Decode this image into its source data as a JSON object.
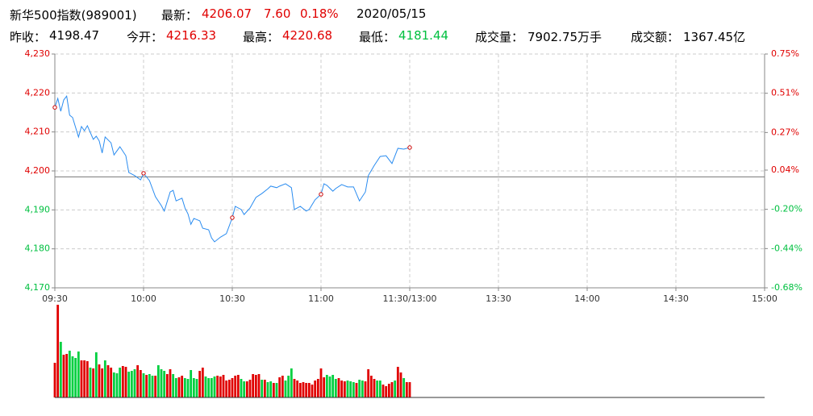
{
  "header": {
    "row1": [
      {
        "text": "新华500指数(989001)",
        "color": "#000000"
      },
      {
        "text": "最新：",
        "color": "#000000"
      },
      {
        "text": "4206.07",
        "color": "#e00000"
      },
      {
        "text": "7.60",
        "color": "#e00000"
      },
      {
        "text": "0.18%",
        "color": "#e00000"
      },
      {
        "text": "2020/05/15",
        "color": "#000000"
      }
    ],
    "row2": [
      {
        "text": "昨收：",
        "color": "#000000"
      },
      {
        "text": "4198.47",
        "color": "#000000"
      },
      {
        "text": "今开：",
        "color": "#000000"
      },
      {
        "text": "4216.33",
        "color": "#e00000"
      },
      {
        "text": "最高：",
        "color": "#000000"
      },
      {
        "text": "4220.68",
        "color": "#e00000"
      },
      {
        "text": "最低：",
        "color": "#000000"
      },
      {
        "text": "4181.44",
        "color": "#00c040"
      },
      {
        "text": "成交量：",
        "color": "#000000"
      },
      {
        "text": "7902.75万手",
        "color": "#000000"
      },
      {
        "text": "成交额：",
        "color": "#000000"
      },
      {
        "text": "1367.45亿",
        "color": "#000000"
      }
    ]
  },
  "chart_data": [
    {
      "type": "line",
      "color": "#2a8cf0",
      "marker_color": "#cc0000",
      "up_color": "#e00000",
      "down_color": "#00c040",
      "grid": true,
      "baseline": 4198.47,
      "x": [
        0,
        1,
        2,
        3,
        4,
        5,
        6,
        8,
        9,
        10,
        11,
        13,
        14,
        15,
        16,
        17,
        19,
        20,
        22,
        24,
        25,
        27,
        29,
        30,
        32,
        34,
        36,
        37,
        39,
        40,
        41,
        43,
        44,
        45,
        46,
        47,
        49,
        50,
        52,
        53,
        54,
        56,
        58,
        60,
        61,
        63,
        64,
        66,
        68,
        70,
        72,
        73,
        75,
        76,
        78,
        80,
        81,
        83,
        85,
        86,
        88,
        90,
        91,
        92,
        94,
        95,
        97,
        99,
        101,
        103,
        105,
        106,
        108,
        110,
        112,
        114,
        116,
        118,
        120
      ],
      "values": [
        4216.3,
        4218.6,
        4215.3,
        4218.2,
        4219.2,
        4214.3,
        4213.7,
        4208.7,
        4211.4,
        4210.3,
        4211.6,
        4208.1,
        4208.9,
        4207.7,
        4204.6,
        4208.7,
        4207.2,
        4204.1,
        4206.2,
        4203.9,
        4199.6,
        4198.8,
        4197.7,
        4199.4,
        4197.5,
        4193.4,
        4191.1,
        4189.7,
        4194.6,
        4195.0,
        4192.3,
        4193.0,
        4190.5,
        4189.0,
        4186.3,
        4187.8,
        4187.2,
        4185.3,
        4184.9,
        4182.8,
        4181.8,
        4183.0,
        4183.9,
        4188.0,
        4190.9,
        4190.1,
        4188.8,
        4190.5,
        4193.2,
        4194.2,
        4195.4,
        4196.1,
        4195.7,
        4196.1,
        4196.7,
        4195.7,
        4190.1,
        4190.9,
        4189.7,
        4190.1,
        4192.6,
        4194.0,
        4196.7,
        4196.3,
        4194.8,
        4195.5,
        4196.5,
        4195.9,
        4195.9,
        4192.3,
        4194.6,
        4198.8,
        4201.4,
        4203.7,
        4203.9,
        4201.9,
        4205.8,
        4205.6,
        4206.0
      ],
      "xlim": [
        0,
        240
      ],
      "xticks": [
        {
          "value": 0,
          "label": "09:30"
        },
        {
          "value": 30,
          "label": "10:00"
        },
        {
          "value": 60,
          "label": "10:30"
        },
        {
          "value": 90,
          "label": "11:00"
        },
        {
          "value": 120,
          "label": "11:30/13:00"
        },
        {
          "value": 150,
          "label": "13:30"
        },
        {
          "value": 180,
          "label": "14:00"
        },
        {
          "value": 210,
          "label": "14:30"
        },
        {
          "value": 240,
          "label": "15:00"
        }
      ],
      "ylim": [
        4170,
        4230
      ],
      "yticks": [
        {
          "value": 4170,
          "label": "4,170"
        },
        {
          "value": 4180,
          "label": "4,180"
        },
        {
          "value": 4190,
          "label": "4,190"
        },
        {
          "value": 4200,
          "label": "4,200"
        },
        {
          "value": 4210,
          "label": "4,210"
        },
        {
          "value": 4220,
          "label": "4,220"
        },
        {
          "value": 4230,
          "label": "4,230"
        }
      ],
      "y2lim": [
        -0.68,
        0.75
      ],
      "y2ticks": [
        {
          "value": -0.68,
          "label": "-0.68%"
        },
        {
          "value": -0.44,
          "label": "-0.44%"
        },
        {
          "value": -0.2,
          "label": "-0.20%"
        },
        {
          "value": 0.04,
          "label": "0.04%"
        },
        {
          "value": 0.27,
          "label": "0.27%"
        },
        {
          "value": 0.51,
          "label": "0.51%"
        },
        {
          "value": 0.75,
          "label": "0.75%"
        }
      ]
    },
    {
      "type": "bar",
      "xlim": [
        0,
        240
      ],
      "ylim": [
        0,
        115
      ],
      "values": [
        43,
        115,
        69,
        53,
        54,
        58,
        51,
        49,
        57,
        46,
        46,
        45,
        37,
        36,
        56,
        41,
        36,
        46,
        40,
        37,
        31,
        30,
        37,
        39,
        38,
        32,
        33,
        35,
        40,
        34,
        30,
        28,
        29,
        27,
        27,
        40,
        35,
        33,
        29,
        35,
        29,
        24,
        25,
        27,
        24,
        23,
        34,
        24,
        23,
        33,
        37,
        26,
        24,
        24,
        26,
        27,
        26,
        28,
        21,
        22,
        24,
        27,
        28,
        23,
        20,
        20,
        22,
        29,
        28,
        29,
        22,
        22,
        19,
        20,
        18,
        18,
        25,
        27,
        21,
        27,
        36,
        23,
        21,
        18,
        19,
        18,
        18,
        16,
        21,
        23,
        36,
        25,
        28,
        26,
        28,
        23,
        24,
        21,
        20,
        21,
        20,
        19,
        18,
        22,
        21,
        20,
        35,
        27,
        23,
        21,
        21,
        16,
        14,
        17,
        19,
        21,
        38,
        31,
        24,
        19,
        19
      ],
      "colors": [
        "#e00000",
        "#e00000",
        "#00d040",
        "#e00000",
        "#e00000",
        "#00d040",
        "#00d040",
        "#00d040",
        "#00d040",
        "#e00000",
        "#e00000",
        "#e00000",
        "#00d040",
        "#e00000",
        "#00d040",
        "#e00000",
        "#e00000",
        "#00d040",
        "#e00000",
        "#e00000",
        "#00d040",
        "#00d040",
        "#00d040",
        "#e00000",
        "#e00000",
        "#00d040",
        "#00d040",
        "#00d040",
        "#e00000",
        "#e00000",
        "#00d040",
        "#e00000",
        "#00d040",
        "#00d040",
        "#e00000",
        "#00d040",
        "#00d040",
        "#00d040",
        "#e00000",
        "#e00000",
        "#00d040",
        "#00d040",
        "#e00000",
        "#e00000",
        "#00d040",
        "#00d040",
        "#00d040",
        "#00d040",
        "#00d040",
        "#e00000",
        "#e00000",
        "#00d040",
        "#00d040",
        "#00d040",
        "#00d040",
        "#e00000",
        "#e00000",
        "#e00000",
        "#e00000",
        "#e00000",
        "#e00000",
        "#e00000",
        "#e00000",
        "#00d040",
        "#00d040",
        "#e00000",
        "#e00000",
        "#e00000",
        "#e00000",
        "#e00000",
        "#00d040",
        "#e00000",
        "#00d040",
        "#00d040",
        "#e00000",
        "#00d040",
        "#e00000",
        "#e00000",
        "#00d040",
        "#00d040",
        "#00d040",
        "#e00000",
        "#e00000",
        "#e00000",
        "#e00000",
        "#e00000",
        "#e00000",
        "#e00000",
        "#e00000",
        "#e00000",
        "#e00000",
        "#e00000",
        "#00d040",
        "#00d040",
        "#00d040",
        "#00d040",
        "#e00000",
        "#e00000",
        "#e00000",
        "#00d040",
        "#00d040",
        "#00d040",
        "#e00000",
        "#00d040",
        "#00d040",
        "#e00000",
        "#e00000",
        "#e00000",
        "#e00000",
        "#00d040",
        "#00d040",
        "#e00000",
        "#e00000",
        "#e00000",
        "#e00000",
        "#00d040",
        "#e00000",
        "#e00000",
        "#00d040",
        "#e00000",
        "#e00000"
      ]
    }
  ]
}
